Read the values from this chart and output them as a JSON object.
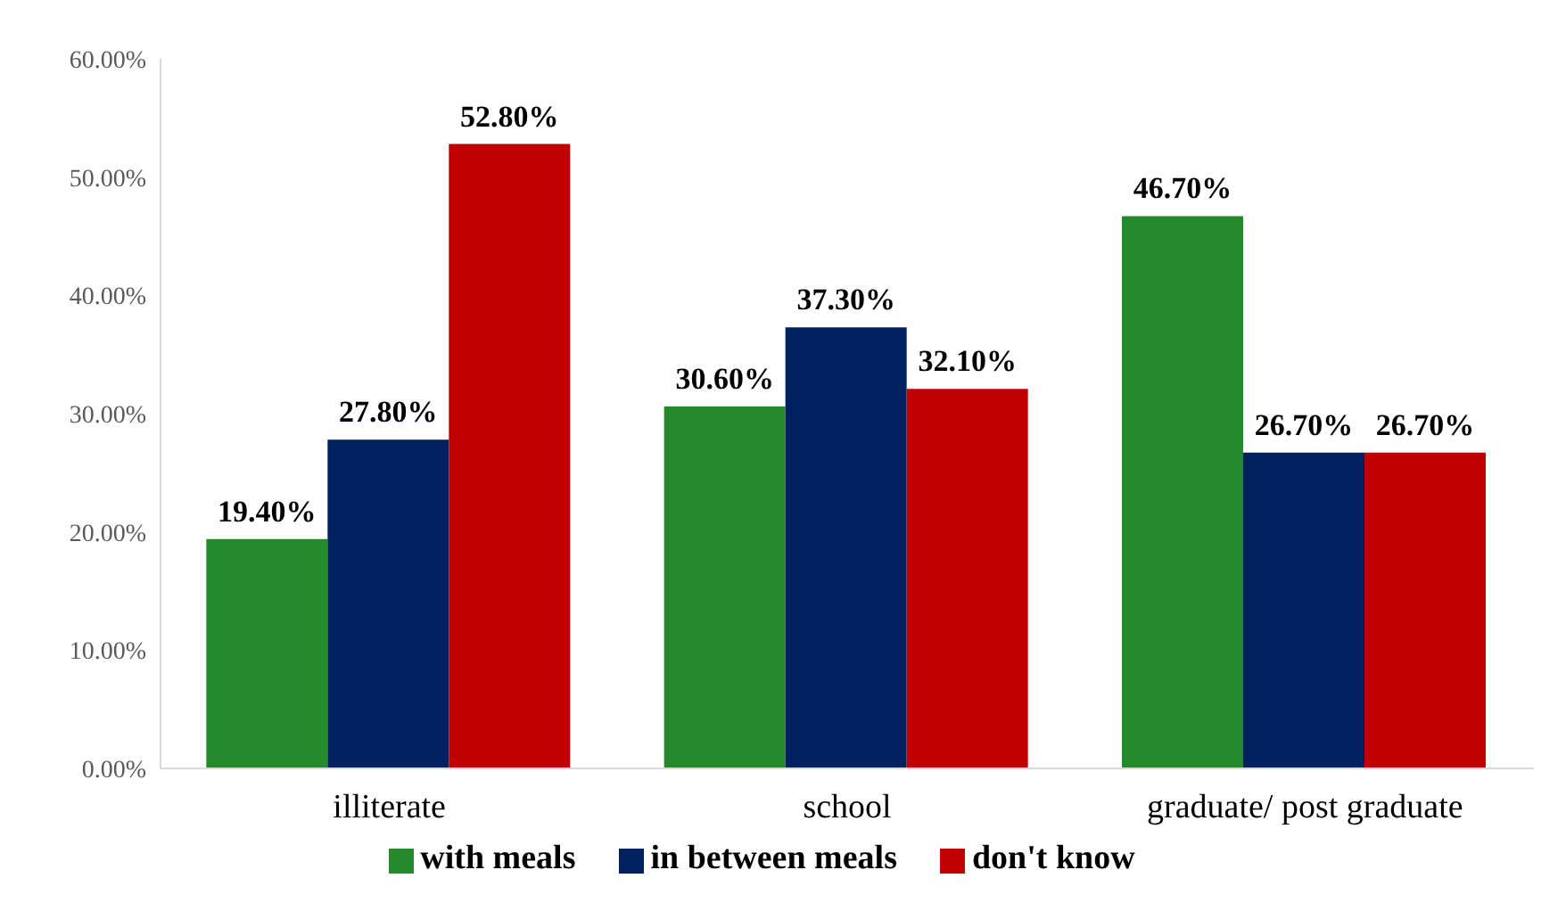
{
  "chart_data": {
    "type": "bar",
    "categories": [
      "illiterate",
      "school",
      "graduate/ post graduate"
    ],
    "series": [
      {
        "name": "with meals",
        "color": "#258a2c",
        "values": [
          19.4,
          30.6,
          46.7
        ],
        "value_labels": [
          "19.40%",
          "30.60%",
          "46.70%"
        ]
      },
      {
        "name": "in between meals",
        "color": "#002060",
        "values": [
          27.8,
          37.3,
          26.7
        ],
        "value_labels": [
          "27.80%",
          "37.30%",
          "26.70%"
        ]
      },
      {
        "name": "don't know",
        "color": "#c00000",
        "values": [
          52.8,
          32.1,
          26.7
        ],
        "value_labels": [
          "52.80%",
          "32.10%",
          "26.70%"
        ]
      }
    ],
    "ylim": [
      0,
      60
    ],
    "yticks": [
      {
        "value": 0,
        "label": "0.00%"
      },
      {
        "value": 10,
        "label": "10.00%"
      },
      {
        "value": 20,
        "label": "20.00%"
      },
      {
        "value": 30,
        "label": "30.00%"
      },
      {
        "value": 40,
        "label": "40.00%"
      },
      {
        "value": 50,
        "label": "50.00%"
      },
      {
        "value": 60,
        "label": "60.00%"
      }
    ],
    "grid": false,
    "legend": "bottom"
  }
}
